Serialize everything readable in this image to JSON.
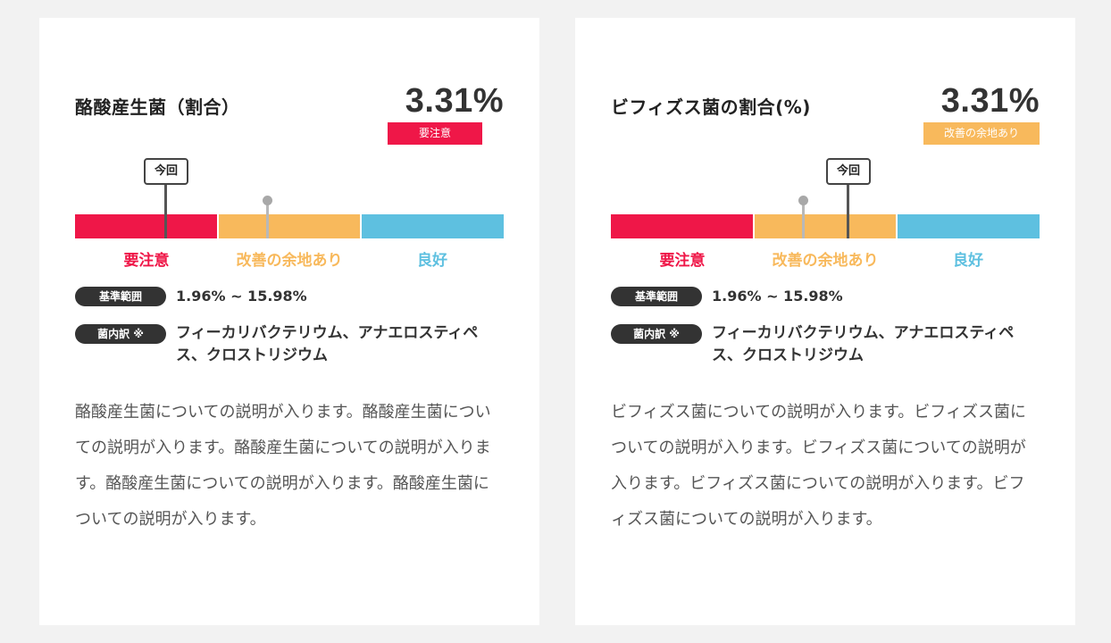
{
  "cards": [
    {
      "title": "酪酸産生菌（割合）",
      "value": "3.31%",
      "status": "要注意",
      "status_color": "#ef1748",
      "marker_label": "今回",
      "zones": [
        "要注意",
        "改善の余地あり",
        "良好"
      ],
      "range_label": "基準範囲",
      "range_value": "1.96% ~ 15.98%",
      "bacteria_label": "菌内訳 ※",
      "bacteria": "フィーカリバクテリウム、アナエロスティペス、クロストリジウム",
      "description": "酪酸産生菌についての説明が入ります。酪酸産生菌についての説明が入ります。酪酸産生菌についての説明が入ります。酪酸産生菌についての説明が入ります。酪酸産生菌についての説明が入ります。"
    },
    {
      "title": "ビフィズス菌の割合(%)",
      "value": "3.31%",
      "status": "改善の余地あり",
      "status_color": "#f8b95c",
      "marker_label": "今回",
      "zones": [
        "要注意",
        "改善の余地あり",
        "良好"
      ],
      "range_label": "基準範囲",
      "range_value": "1.96% ~ 15.98%",
      "bacteria_label": "菌内訳 ※",
      "bacteria": "フィーカリバクテリウム、アナエロスティペス、クロストリジウム",
      "description": "ビフィズス菌についての説明が入ります。ビフィズス菌についての説明が入ります。ビフィズス菌についての説明が入ります。ビフィズス菌についての説明が入ります。ビフィズス菌についての説明が入ります。"
    }
  ],
  "zone_colors": [
    "#ef1748",
    "#f8b95c",
    "#5ec0e0"
  ]
}
